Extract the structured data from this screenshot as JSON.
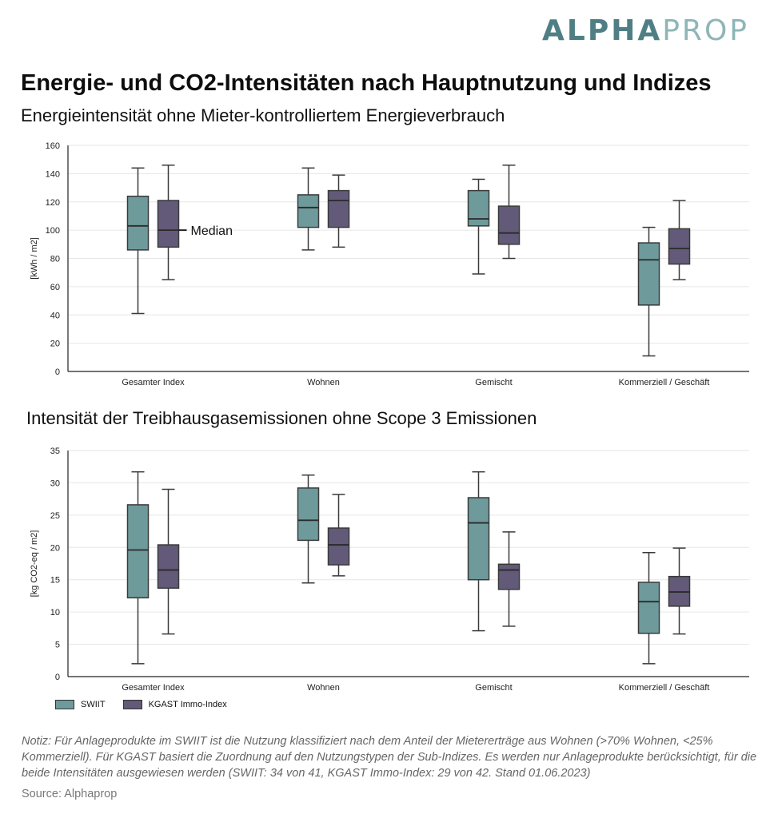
{
  "brand": {
    "logo_part1": "ALPHA",
    "logo_part2": "PROP",
    "color_dark": "#4f7f84",
    "color_light": "#8fb6b7"
  },
  "title": "Energie- und CO2-Intensitäten nach Hauptnutzung und Indizes",
  "legend": [
    {
      "label": "SWIIT",
      "color": "#6e9a9b"
    },
    {
      "label": "KGAST Immo-Index",
      "color": "#625a78"
    }
  ],
  "note": "Notiz: Für Anlageprodukte im SWIIT ist die Nutzung klassifiziert nach dem Anteil der Mietererträge aus Wohnen (>70% Wohnen, <25% Kommerziell). Für KGAST basiert die Zuordnung auf den Nutzungstypen der Sub-Indizes. Es werden nur Anlageprodukte berücksichtigt, für die beide Intensitäten ausgewiesen werden (SWIIT:  34 von 41, KGAST Immo-Index: 29 von 42. Stand 01.06.2023)",
  "source": "Source: Alphaprop",
  "chart_data": [
    {
      "type": "box",
      "title": "Energieintensität ohne Mieter-kontrolliertem Energieverbrauch",
      "ylabel": "[kWh / m2]",
      "ylim": [
        0,
        160
      ],
      "yticks": [
        0,
        20,
        40,
        60,
        80,
        100,
        120,
        140,
        160
      ],
      "grid": true,
      "categories": [
        "Gesamter Index",
        "Wohnen",
        "Gemischt",
        "Kommerziell / Geschäft"
      ],
      "annotation": {
        "text": "Median",
        "series": "KGAST Immo-Index",
        "category": "Gesamter Index"
      },
      "series": [
        {
          "name": "SWIIT",
          "boxes": [
            {
              "min": 41,
              "q1": 86,
              "median": 103,
              "q3": 124,
              "max": 144
            },
            {
              "min": 86,
              "q1": 102,
              "median": 116,
              "q3": 125,
              "max": 144
            },
            {
              "min": 69,
              "q1": 103,
              "median": 108,
              "q3": 128,
              "max": 136
            },
            {
              "min": 11,
              "q1": 47,
              "median": 79,
              "q3": 91,
              "max": 102
            }
          ]
        },
        {
          "name": "KGAST Immo-Index",
          "boxes": [
            {
              "min": 65,
              "q1": 88,
              "median": 100,
              "q3": 121,
              "max": 146
            },
            {
              "min": 88,
              "q1": 102,
              "median": 121,
              "q3": 128,
              "max": 139
            },
            {
              "min": 80,
              "q1": 90,
              "median": 98,
              "q3": 117,
              "max": 146
            },
            {
              "min": 65,
              "q1": 76,
              "median": 87,
              "q3": 101,
              "max": 121
            }
          ]
        }
      ]
    },
    {
      "type": "box",
      "title": "Intensität der Treibhausgasemissionen ohne Scope 3 Emissionen",
      "ylabel": "[kg CO2-eq / m2]",
      "ylim": [
        0,
        35
      ],
      "yticks": [
        0,
        5,
        10,
        15,
        20,
        25,
        30,
        35
      ],
      "grid": true,
      "categories": [
        "Gesamter Index",
        "Wohnen",
        "Gemischt",
        "Kommerziell / Geschäft"
      ],
      "series": [
        {
          "name": "SWIIT",
          "boxes": [
            {
              "min": 2,
              "q1": 12.2,
              "median": 19.6,
              "q3": 26.6,
              "max": 31.7
            },
            {
              "min": 14.5,
              "q1": 21.1,
              "median": 24.2,
              "q3": 29.2,
              "max": 31.2
            },
            {
              "min": 7.1,
              "q1": 15,
              "median": 23.8,
              "q3": 27.7,
              "max": 31.7
            },
            {
              "min": 2,
              "q1": 6.7,
              "median": 11.6,
              "q3": 14.6,
              "max": 19.2
            }
          ]
        },
        {
          "name": "KGAST Immo-Index",
          "boxes": [
            {
              "min": 6.6,
              "q1": 13.7,
              "median": 16.5,
              "q3": 20.4,
              "max": 29
            },
            {
              "min": 15.6,
              "q1": 17.3,
              "median": 20.4,
              "q3": 23,
              "max": 28.2
            },
            {
              "min": 7.8,
              "q1": 13.5,
              "median": 16.5,
              "q3": 17.4,
              "max": 22.4
            },
            {
              "min": 6.6,
              "q1": 10.9,
              "median": 13.1,
              "q3": 15.5,
              "max": 19.9
            }
          ]
        }
      ]
    }
  ]
}
